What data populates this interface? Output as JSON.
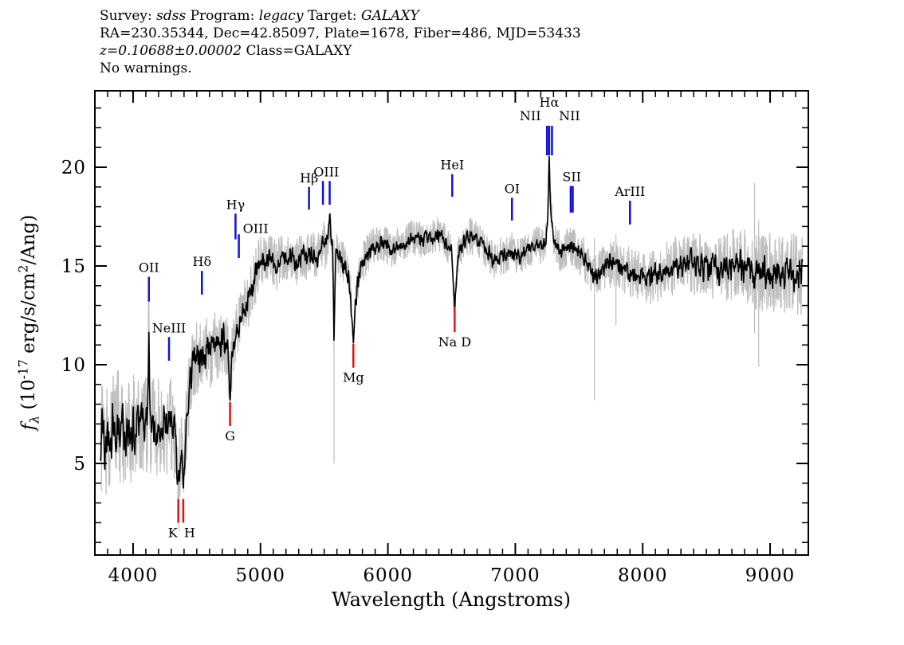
{
  "header": {
    "line1_parts": [
      "Survey: ",
      "sdss",
      " Program: ",
      "legacy",
      " Target: ",
      "GALAXY"
    ],
    "line2": "RA=230.35344, Dec=42.85097, Plate=1678, Fiber=486, MJD=53433",
    "line3_parts": [
      "z=0.10688±0.00002",
      " Class=GALAXY"
    ],
    "line4": "No warnings."
  },
  "axes": {
    "x_label": "Wavelength (Angstroms)",
    "y_label_parts": {
      "f": "f",
      "sub": "λ",
      "mid": " (10",
      "exp": "-17",
      "unit": " erg/s/cm",
      "sq": "2",
      "end": "/Ang)"
    }
  },
  "chart_data": {
    "type": "line",
    "title": "SDSS galaxy spectrum, Plate=1678 Fiber=486 MJD=53433",
    "xlabel": "Wavelength (Angstroms)",
    "ylabel": "f_lambda (10^-17 erg/s/cm^2/Ang)",
    "xlim": [
      3700,
      9300
    ],
    "ylim": [
      0.37,
      23.87
    ],
    "x_major_ticks": [
      4000,
      5000,
      6000,
      7000,
      8000,
      9000
    ],
    "x_minor_step": 100,
    "y_major_ticks": [
      5,
      10,
      15,
      20
    ],
    "y_minor_step": 1,
    "grid": false,
    "colors": {
      "spectrum": "#000000",
      "error": "#bdbdbd",
      "emission_marker": "#1212d6",
      "absorption_marker": "#e01313"
    },
    "noise_seed": 12345,
    "spectrum_anchors": [
      [
        3745,
        5.2
      ],
      [
        3760,
        6.8
      ],
      [
        3780,
        5.8
      ],
      [
        3800,
        6.6
      ],
      [
        3820,
        5.5
      ],
      [
        3840,
        7.2
      ],
      [
        3860,
        6.0
      ],
      [
        3880,
        7.4
      ],
      [
        3900,
        6.2
      ],
      [
        3920,
        7.0
      ],
      [
        3940,
        5.6
      ],
      [
        3960,
        6.9
      ],
      [
        3980,
        6.4
      ],
      [
        4000,
        7.2
      ],
      [
        4020,
        6.5
      ],
      [
        4040,
        7.4
      ],
      [
        4060,
        6.7
      ],
      [
        4080,
        7.0
      ],
      [
        4100,
        6.8
      ],
      [
        4110,
        6.9
      ],
      [
        4118,
        9.0
      ],
      [
        4124,
        12.6
      ],
      [
        4130,
        8.5
      ],
      [
        4140,
        6.6
      ],
      [
        4160,
        7.2
      ],
      [
        4180,
        6.4
      ],
      [
        4200,
        6.9
      ],
      [
        4220,
        6.2
      ],
      [
        4240,
        7.0
      ],
      [
        4260,
        6.6
      ],
      [
        4280,
        6.9
      ],
      [
        4300,
        7.1
      ],
      [
        4320,
        6.5
      ],
      [
        4335,
        5.8
      ],
      [
        4345,
        4.6
      ],
      [
        4355,
        3.4
      ],
      [
        4365,
        5.0
      ],
      [
        4375,
        6.0
      ],
      [
        4385,
        4.9
      ],
      [
        4394,
        3.8
      ],
      [
        4404,
        5.4
      ],
      [
        4415,
        6.6
      ],
      [
        4430,
        7.8
      ],
      [
        4450,
        9.3
      ],
      [
        4470,
        10.0
      ],
      [
        4490,
        10.4
      ],
      [
        4510,
        10.1
      ],
      [
        4530,
        10.6
      ],
      [
        4550,
        10.2
      ],
      [
        4570,
        10.7
      ],
      [
        4590,
        10.9
      ],
      [
        4610,
        10.6
      ],
      [
        4630,
        11.0
      ],
      [
        4650,
        11.1
      ],
      [
        4670,
        10.8
      ],
      [
        4690,
        11.2
      ],
      [
        4710,
        11.3
      ],
      [
        4730,
        11.1
      ],
      [
        4745,
        10.4
      ],
      [
        4755,
        9.3
      ],
      [
        4761,
        8.6
      ],
      [
        4770,
        9.6
      ],
      [
        4782,
        10.8
      ],
      [
        4800,
        11.4
      ],
      [
        4815,
        11.8
      ],
      [
        4830,
        12.0
      ],
      [
        4850,
        12.4
      ],
      [
        4870,
        12.7
      ],
      [
        4890,
        13.1
      ],
      [
        4910,
        13.5
      ],
      [
        4930,
        13.9
      ],
      [
        4950,
        14.3
      ],
      [
        4970,
        14.7
      ],
      [
        4990,
        15.0
      ],
      [
        5010,
        15.2
      ],
      [
        5040,
        15.1
      ],
      [
        5070,
        15.4
      ],
      [
        5100,
        15.3
      ],
      [
        5130,
        15.0
      ],
      [
        5160,
        15.4
      ],
      [
        5190,
        15.6
      ],
      [
        5220,
        15.3
      ],
      [
        5250,
        15.5
      ],
      [
        5280,
        15.2
      ],
      [
        5310,
        15.4
      ],
      [
        5340,
        15.6
      ],
      [
        5360,
        15.3
      ],
      [
        5381,
        15.9
      ],
      [
        5400,
        15.5
      ],
      [
        5420,
        15.6
      ],
      [
        5440,
        15.4
      ],
      [
        5460,
        15.7
      ],
      [
        5480,
        16.0
      ],
      [
        5490,
        16.3
      ],
      [
        5510,
        15.9
      ],
      [
        5530,
        16.4
      ],
      [
        5543,
        17.4
      ],
      [
        5555,
        16.2
      ],
      [
        5565,
        15.9
      ],
      [
        5572,
        13.5
      ],
      [
        5577,
        10.8
      ],
      [
        5583,
        13.5
      ],
      [
        5592,
        15.7
      ],
      [
        5610,
        15.6
      ],
      [
        5640,
        15.3
      ],
      [
        5670,
        14.9
      ],
      [
        5700,
        14.1
      ],
      [
        5715,
        12.6
      ],
      [
        5729,
        11.1
      ],
      [
        5743,
        12.9
      ],
      [
        5760,
        14.1
      ],
      [
        5790,
        15.0
      ],
      [
        5820,
        15.4
      ],
      [
        5850,
        15.7
      ],
      [
        5880,
        15.9
      ],
      [
        5910,
        16.1
      ],
      [
        5940,
        16.0
      ],
      [
        5970,
        16.2
      ],
      [
        6000,
        16.0
      ],
      [
        6030,
        15.7
      ],
      [
        6060,
        15.9
      ],
      [
        6090,
        16.1
      ],
      [
        6120,
        16.0
      ],
      [
        6150,
        16.2
      ],
      [
        6180,
        16.4
      ],
      [
        6210,
        16.3
      ],
      [
        6240,
        16.5
      ],
      [
        6270,
        16.3
      ],
      [
        6300,
        16.5
      ],
      [
        6330,
        16.6
      ],
      [
        6360,
        16.4
      ],
      [
        6390,
        16.6
      ],
      [
        6420,
        16.4
      ],
      [
        6450,
        16.2
      ],
      [
        6480,
        16.0
      ],
      [
        6500,
        15.8
      ],
      [
        6512,
        14.2
      ],
      [
        6524,
        12.6
      ],
      [
        6537,
        14.2
      ],
      [
        6550,
        15.4
      ],
      [
        6580,
        16.1
      ],
      [
        6610,
        16.4
      ],
      [
        6640,
        16.5
      ],
      [
        6670,
        16.4
      ],
      [
        6700,
        16.3
      ],
      [
        6730,
        16.1
      ],
      [
        6760,
        15.9
      ],
      [
        6790,
        15.7
      ],
      [
        6820,
        15.4
      ],
      [
        6850,
        15.2
      ],
      [
        6880,
        15.5
      ],
      [
        6910,
        15.4
      ],
      [
        6940,
        15.6
      ],
      [
        6974,
        15.8
      ],
      [
        7000,
        15.6
      ],
      [
        7030,
        15.4
      ],
      [
        7060,
        15.6
      ],
      [
        7090,
        15.8
      ],
      [
        7120,
        15.9
      ],
      [
        7150,
        16.0
      ],
      [
        7180,
        16.1
      ],
      [
        7210,
        16.0
      ],
      [
        7240,
        16.2
      ],
      [
        7249,
        17.0
      ],
      [
        7258,
        18.3
      ],
      [
        7266,
        20.3
      ],
      [
        7274,
        18.3
      ],
      [
        7288,
        17.2
      ],
      [
        7300,
        16.3
      ],
      [
        7330,
        15.9
      ],
      [
        7360,
        15.7
      ],
      [
        7390,
        15.8
      ],
      [
        7410,
        15.9
      ],
      [
        7435,
        16.2
      ],
      [
        7451,
        16.0
      ],
      [
        7480,
        15.7
      ],
      [
        7510,
        15.6
      ],
      [
        7540,
        15.4
      ],
      [
        7570,
        15.0
      ],
      [
        7600,
        14.6
      ],
      [
        7630,
        14.5
      ],
      [
        7660,
        14.7
      ],
      [
        7690,
        14.9
      ],
      [
        7720,
        15.0
      ],
      [
        7750,
        15.1
      ],
      [
        7780,
        15.2
      ],
      [
        7810,
        15.0
      ],
      [
        7840,
        14.9
      ],
      [
        7870,
        14.8
      ],
      [
        7900,
        14.7
      ],
      [
        7930,
        14.6
      ],
      [
        7960,
        14.6
      ],
      [
        8000,
        14.5
      ],
      [
        8050,
        14.4
      ],
      [
        8100,
        14.5
      ],
      [
        8150,
        14.7
      ],
      [
        8200,
        14.8
      ],
      [
        8250,
        15.0
      ],
      [
        8300,
        15.1
      ],
      [
        8350,
        15.2
      ],
      [
        8400,
        15.1
      ],
      [
        8450,
        15.0
      ],
      [
        8500,
        14.9
      ],
      [
        8550,
        14.8
      ],
      [
        8600,
        14.8
      ],
      [
        8650,
        14.9
      ],
      [
        8700,
        15.0
      ],
      [
        8750,
        15.1
      ],
      [
        8800,
        15.0
      ],
      [
        8850,
        14.8
      ],
      [
        8900,
        14.7
      ],
      [
        8950,
        14.6
      ],
      [
        9000,
        14.8
      ],
      [
        9050,
        14.6
      ],
      [
        9100,
        14.5
      ],
      [
        9150,
        14.7
      ],
      [
        9200,
        14.6
      ],
      [
        9255,
        14.4
      ]
    ],
    "noise_profile": [
      [
        3745,
        1.45
      ],
      [
        4000,
        1.35
      ],
      [
        4300,
        1.25
      ],
      [
        4500,
        1.0
      ],
      [
        4800,
        0.85
      ],
      [
        5100,
        0.7
      ],
      [
        5400,
        0.6
      ],
      [
        5700,
        0.55
      ],
      [
        6000,
        0.5
      ],
      [
        6400,
        0.48
      ],
      [
        6800,
        0.5
      ],
      [
        7200,
        0.5
      ],
      [
        7600,
        0.6
      ],
      [
        8000,
        0.7
      ],
      [
        8400,
        0.85
      ],
      [
        8800,
        1.0
      ],
      [
        9255,
        1.1
      ]
    ],
    "error_spikes": [
      [
        4358,
        1.6,
        4.6
      ],
      [
        5577,
        5.0,
        16.3
      ],
      [
        7621,
        8.2,
        16.4
      ],
      [
        7790,
        12.0,
        16.6
      ],
      [
        8878,
        11.6,
        19.2
      ],
      [
        8910,
        9.9,
        17.3
      ]
    ],
    "line_markers": [
      {
        "label": "OII",
        "wavelengths": [
          4124
        ],
        "type": "emission",
        "tick": [
          13.2,
          14.45
        ],
        "label_pos": "above"
      },
      {
        "label": "NeIII",
        "wavelengths": [
          4282
        ],
        "type": "emission",
        "tick": [
          10.2,
          11.4
        ],
        "label_pos": "above"
      },
      {
        "label": "Hδ",
        "wavelengths": [
          4540
        ],
        "type": "emission",
        "tick": [
          13.55,
          14.75
        ],
        "label_pos": "above"
      },
      {
        "label": "Hγ",
        "wavelengths": [
          4804
        ],
        "type": "emission",
        "tick": [
          16.35,
          17.65
        ],
        "label_pos": "above"
      },
      {
        "label": "OIII",
        "wavelengths": [
          4830
        ],
        "type": "emission",
        "tick": [
          15.4,
          16.6
        ],
        "label_pos": "right"
      },
      {
        "label": "Hβ",
        "wavelengths": [
          5381
        ],
        "type": "emission",
        "tick": [
          17.85,
          19.0
        ],
        "label_pos": "above"
      },
      {
        "label": "OIII",
        "wavelengths": [
          5490,
          5543
        ],
        "type": "emission",
        "tick": [
          18.1,
          19.3
        ],
        "label_pos": "above"
      },
      {
        "label": "HeI",
        "wavelengths": [
          6505
        ],
        "type": "emission",
        "tick": [
          18.5,
          19.65
        ],
        "label_pos": "above"
      },
      {
        "label": "OI",
        "wavelengths": [
          6974
        ],
        "type": "emission",
        "tick": [
          17.3,
          18.45
        ],
        "label_pos": "above"
      },
      {
        "label": "NII",
        "wavelengths": [
          7249
        ],
        "type": "emission",
        "tick": [
          20.6,
          22.1
        ],
        "label_pos": "above-left"
      },
      {
        "label": "Hα",
        "wavelengths": [
          7266
        ],
        "type": "emission",
        "tick": [
          20.6,
          22.1
        ],
        "label_pos": "above-high"
      },
      {
        "label": "NII",
        "wavelengths": [
          7288
        ],
        "type": "emission",
        "tick": [
          20.6,
          22.1
        ],
        "label_pos": "above-right"
      },
      {
        "label": "SII",
        "wavelengths": [
          7435,
          7451
        ],
        "type": "emission",
        "tick": [
          17.7,
          19.05
        ],
        "label_pos": "above"
      },
      {
        "label": "ArIII",
        "wavelengths": [
          7900
        ],
        "type": "emission",
        "tick": [
          17.1,
          18.3
        ],
        "label_pos": "above"
      },
      {
        "label": "K",
        "wavelengths": [
          4355
        ],
        "type": "absorption",
        "tick": [
          2.0,
          3.2
        ],
        "label_pos": "below-left"
      },
      {
        "label": "H",
        "wavelengths": [
          4394
        ],
        "type": "absorption",
        "tick": [
          2.0,
          3.2
        ],
        "label_pos": "below-right"
      },
      {
        "label": "G",
        "wavelengths": [
          4761
        ],
        "type": "absorption",
        "tick": [
          6.9,
          8.1
        ],
        "label_pos": "below"
      },
      {
        "label": "Mg",
        "wavelengths": [
          5729
        ],
        "type": "absorption",
        "tick": [
          9.85,
          11.05
        ],
        "label_pos": "below"
      },
      {
        "label": "Na D",
        "wavelengths": [
          6524
        ],
        "type": "absorption",
        "tick": [
          11.65,
          12.95
        ],
        "label_pos": "below"
      }
    ]
  }
}
